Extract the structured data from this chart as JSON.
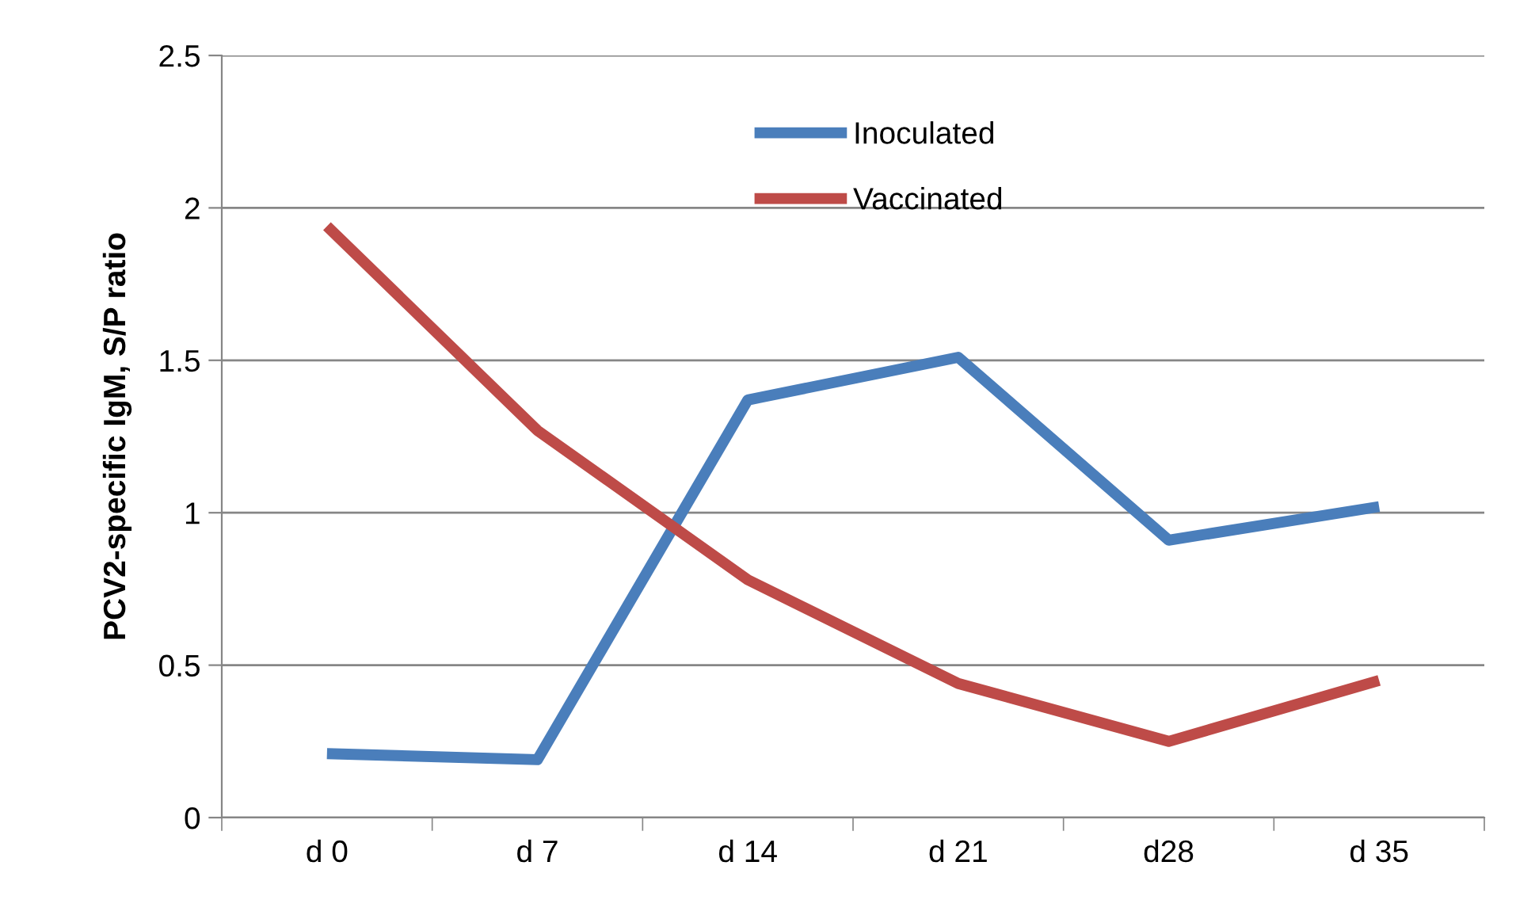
{
  "chart_data": {
    "type": "line",
    "ylabel": "PCV2-specific IgM, S/P ratio",
    "categories": [
      "d 0",
      "d 7",
      "d 14",
      "d 21",
      "d28",
      "d 35"
    ],
    "series": [
      {
        "name": "Inoculated",
        "color": "#4a7ebb",
        "values": [
          0.21,
          0.19,
          1.37,
          1.51,
          0.91,
          1.02
        ]
      },
      {
        "name": "Vaccinated",
        "color": "#be4b48",
        "values": [
          1.94,
          1.27,
          0.78,
          0.44,
          0.25,
          0.45
        ]
      }
    ],
    "ylim": [
      0,
      2.5
    ],
    "yticks": [
      0,
      0.5,
      1,
      1.5,
      2,
      2.5
    ],
    "grid": "y",
    "legend": "top",
    "marker": "none",
    "line_style": "solid"
  }
}
